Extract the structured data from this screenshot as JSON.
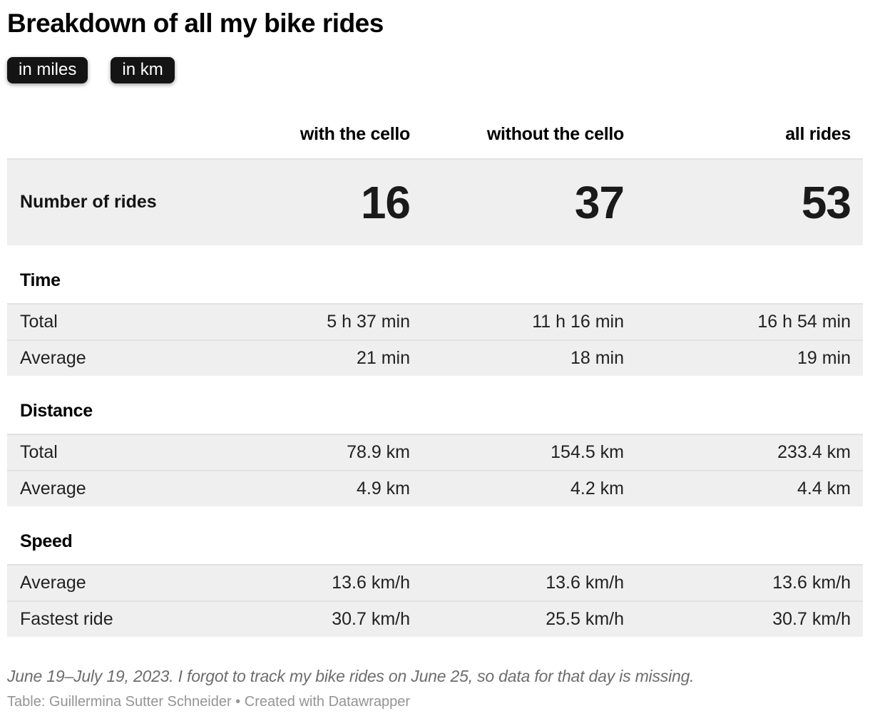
{
  "header": {
    "buttons": [
      {
        "label": "in miles"
      },
      {
        "label": "in km"
      }
    ]
  },
  "chart_data": {
    "type": "table",
    "title": "Breakdown of all my bike rides",
    "unit_options": [
      "in miles",
      "in km"
    ],
    "displayed_unit": "in km",
    "columns": [
      "with the cello",
      "without the cello",
      "all rides"
    ],
    "summary_row": {
      "label": "Number of rides",
      "values": [
        "16",
        "37",
        "53"
      ]
    },
    "sections": [
      {
        "title": "Time",
        "rows": [
          {
            "label": "Total",
            "values": [
              "5 h 37 min",
              "11 h 16 min",
              "16 h 54 min"
            ]
          },
          {
            "label": "Average",
            "values": [
              "21 min",
              "18 min",
              "19 min"
            ]
          }
        ]
      },
      {
        "title": "Distance",
        "rows": [
          {
            "label": "Total",
            "values": [
              "78.9 km",
              "154.5 km",
              "233.4 km"
            ]
          },
          {
            "label": "Average",
            "values": [
              "4.9 km",
              "4.2 km",
              "4.4 km"
            ]
          }
        ]
      },
      {
        "title": "Speed",
        "rows": [
          {
            "label": "Average",
            "values": [
              "13.6 km/h",
              "13.6 km/h",
              "13.6 km/h"
            ]
          },
          {
            "label": "Fastest ride",
            "values": [
              "30.7 km/h",
              "25.5 km/h",
              "30.7 km/h"
            ]
          }
        ]
      }
    ]
  },
  "footer": {
    "note": "June 19–July 19, 2023. I forgot to track my bike rides on June 25, so data for that day is missing.",
    "byline": "Table: Guillermina Sutter Schneider",
    "separator": "•",
    "credit": "Created with Datawrapper"
  },
  "colors": {
    "button_bg": "#141414",
    "button_text": "#ffffff",
    "row_bg": "#efefef",
    "row_border": "#e2e2e2",
    "title_text": "#000000",
    "body_text": "#222222",
    "note_text": "#6d6d6d",
    "attribution_text": "#949494"
  }
}
